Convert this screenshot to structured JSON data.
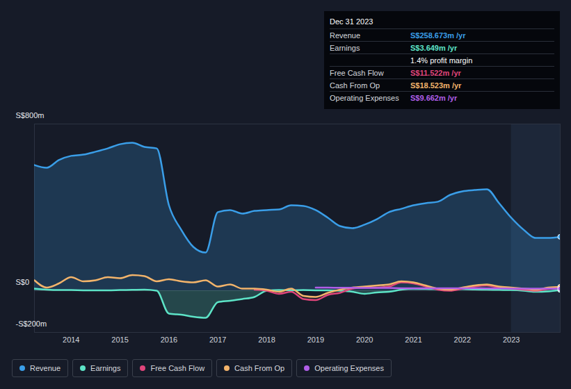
{
  "chart_data": {
    "type": "line",
    "x": [
      2013.25,
      2013.5,
      2013.75,
      2014,
      2014.25,
      2014.5,
      2014.75,
      2015,
      2015.25,
      2015.5,
      2015.75,
      2016,
      2016.25,
      2016.5,
      2016.75,
      2017,
      2017.25,
      2017.5,
      2017.75,
      2018,
      2018.25,
      2018.5,
      2018.75,
      2019,
      2019.25,
      2019.5,
      2019.75,
      2020,
      2020.25,
      2020.5,
      2020.75,
      2021,
      2021.25,
      2021.5,
      2021.75,
      2022,
      2022.25,
      2022.5,
      2022.75,
      2023,
      2023.25,
      2023.5,
      2023.75,
      2024
    ],
    "series": [
      {
        "name": "Revenue",
        "color": "#3a9ee8",
        "type": "area",
        "values": [
          603,
          590,
          627,
          647,
          653,
          667,
          683,
          703,
          710,
          690,
          683,
          410,
          293,
          210,
          183,
          377,
          387,
          370,
          383,
          387,
          390,
          410,
          407,
          387,
          350,
          310,
          300,
          317,
          343,
          377,
          393,
          410,
          420,
          427,
          460,
          477,
          483,
          487,
          420,
          350,
          293,
          253,
          253,
          258.673
        ]
      },
      {
        "name": "Earnings",
        "color": "#5de4c7",
        "type": "area",
        "values": [
          10,
          5,
          3,
          3,
          2,
          2,
          2,
          3,
          4,
          5,
          0,
          -110,
          -115,
          -125,
          -130,
          -55,
          -48,
          -40,
          -30,
          0,
          3,
          2,
          3,
          2,
          2,
          0,
          -5,
          -15,
          -8,
          -5,
          5,
          10,
          9,
          8,
          8,
          8,
          6,
          5,
          4,
          3,
          0,
          -5,
          -3,
          3.649
        ]
      },
      {
        "name": "Free Cash Flow",
        "color": "#e0457b",
        "type": "line",
        "values": [
          null,
          null,
          null,
          null,
          null,
          null,
          null,
          null,
          null,
          null,
          null,
          null,
          null,
          null,
          null,
          null,
          null,
          null,
          5,
          0,
          -15,
          -5,
          -40,
          -45,
          -20,
          -10,
          10,
          15,
          15,
          20,
          40,
          35,
          20,
          5,
          0,
          10,
          20,
          25,
          15,
          10,
          5,
          0,
          8,
          11.522
        ]
      },
      {
        "name": "Cash From Op",
        "color": "#f3b46b",
        "type": "line",
        "values": [
          50,
          15,
          35,
          65,
          45,
          50,
          65,
          60,
          75,
          70,
          45,
          55,
          45,
          40,
          50,
          20,
          30,
          10,
          10,
          5,
          -5,
          10,
          -25,
          -30,
          -10,
          5,
          15,
          20,
          25,
          30,
          45,
          40,
          25,
          10,
          5,
          15,
          25,
          30,
          20,
          15,
          10,
          5,
          15,
          18.523
        ]
      },
      {
        "name": "Operating Expenses",
        "color": "#b05ee8",
        "type": "line",
        "values": [
          null,
          null,
          null,
          null,
          null,
          null,
          null,
          null,
          null,
          null,
          null,
          null,
          null,
          null,
          null,
          null,
          null,
          null,
          null,
          null,
          null,
          null,
          null,
          15,
          15,
          14,
          14,
          13,
          13,
          13,
          12,
          12,
          12,
          12,
          12,
          12,
          12,
          11,
          11,
          10,
          10,
          10,
          10,
          9.662
        ]
      }
    ],
    "xlim": [
      2013.25,
      2024
    ],
    "xticks": [
      2014,
      2015,
      2016,
      2017,
      2018,
      2019,
      2020,
      2021,
      2022,
      2023
    ],
    "ylim": [
      -200,
      800
    ],
    "yticks": [
      {
        "value": -200,
        "label": "-S$200m"
      },
      {
        "value": 0,
        "label": "S$0"
      },
      {
        "value": 800,
        "label": "S$800m"
      }
    ],
    "grid": true,
    "legend": "bottom",
    "highlight_range": [
      2023,
      2024
    ],
    "annotations": {
      "title": "Dec 31 2023",
      "rows": [
        {
          "label": "Revenue",
          "value": "S$258.673m /yr",
          "color": "#3a9ee8"
        },
        {
          "label": "Earnings",
          "value": "S$3.649m /yr",
          "color": "#5de4c7"
        },
        {
          "value": "1.4% profit margin",
          "color": "#ffffff"
        },
        {
          "label": "Free Cash Flow",
          "value": "S$11.522m /yr",
          "color": "#e0457b"
        },
        {
          "label": "Cash From Op",
          "value": "S$18.523m /yr",
          "color": "#f3b46b"
        },
        {
          "label": "Operating Expenses",
          "value": "S$9.662m /yr",
          "color": "#b05ee8"
        }
      ]
    }
  }
}
